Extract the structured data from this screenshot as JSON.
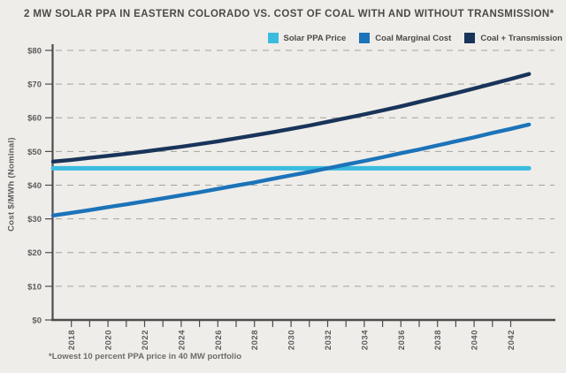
{
  "title": "2 MW SOLAR PPA IN EASTERN COLORADO VS. COST OF COAL WITH AND WITHOUT TRANSMISSION*",
  "footnote": "*Lowest 10 percent PPA price in 40 MW portfolio",
  "colors": {
    "background": "#efede9",
    "axis": "#4d4d4f",
    "gridline": "#a5a29d",
    "tick_label": "#5d5c5e",
    "title_text": "#4b4a47",
    "solar_ppa": "#3bbcdf",
    "coal_marginal": "#1c73b9",
    "coal_transmission": "#19345a"
  },
  "chart_data": {
    "type": "line",
    "title": "2 MW SOLAR PPA IN EASTERN COLORADO VS. COST OF COAL WITH AND WITHOUT TRANSMISSION*",
    "xlabel": "",
    "ylabel": "Cost $/MWh (Nominal)",
    "ylim": [
      0,
      80
    ],
    "y_tick_labels": [
      "$0",
      "$10",
      "$20",
      "$30",
      "$40",
      "$50",
      "$60",
      "$70",
      "$80"
    ],
    "x": [
      2017,
      2018,
      2019,
      2020,
      2021,
      2022,
      2023,
      2024,
      2025,
      2026,
      2027,
      2028,
      2029,
      2030,
      2031,
      2032,
      2033,
      2034,
      2035,
      2036,
      2037,
      2038,
      2039,
      2040,
      2041,
      2042,
      2043
    ],
    "x_tick_labels": [
      "2018",
      "2020",
      "2022",
      "2024",
      "2026",
      "2028",
      "2030",
      "2032",
      "2034",
      "2036",
      "2038",
      "2040",
      "2042"
    ],
    "x_minor_tick_range": [
      2018,
      2042
    ],
    "grid": "dashed horizontal gridlines every $10",
    "legend_position": "top-right",
    "series": [
      {
        "name": "Solar PPA Price",
        "color": "#3bbcdf",
        "values": [
          45,
          45,
          45,
          45,
          45,
          45,
          45,
          45,
          45,
          45,
          45,
          45,
          45,
          45,
          45,
          45,
          45,
          45,
          45,
          45,
          45,
          45,
          45,
          45,
          45,
          45,
          45
        ]
      },
      {
        "name": "Coal Marginal Cost",
        "color": "#1c73b9",
        "values": [
          31.0,
          31.8,
          32.6,
          33.5,
          34.3,
          35.2,
          36.1,
          37.0,
          37.9,
          38.9,
          39.9,
          40.8,
          41.9,
          42.9,
          43.9,
          45.0,
          46.1,
          47.2,
          48.3,
          49.5,
          50.6,
          51.8,
          53.0,
          54.2,
          55.5,
          56.7,
          58.0
        ]
      },
      {
        "name": "Coal + Transmission",
        "color": "#19345a",
        "values": [
          47.0,
          47.5,
          48.1,
          48.7,
          49.3,
          50.0,
          50.7,
          51.4,
          52.2,
          53.0,
          53.9,
          54.8,
          55.7,
          56.7,
          57.7,
          58.8,
          59.9,
          61.0,
          62.2,
          63.4,
          64.7,
          66.0,
          67.3,
          68.7,
          70.1,
          71.5,
          73.0
        ]
      }
    ]
  }
}
